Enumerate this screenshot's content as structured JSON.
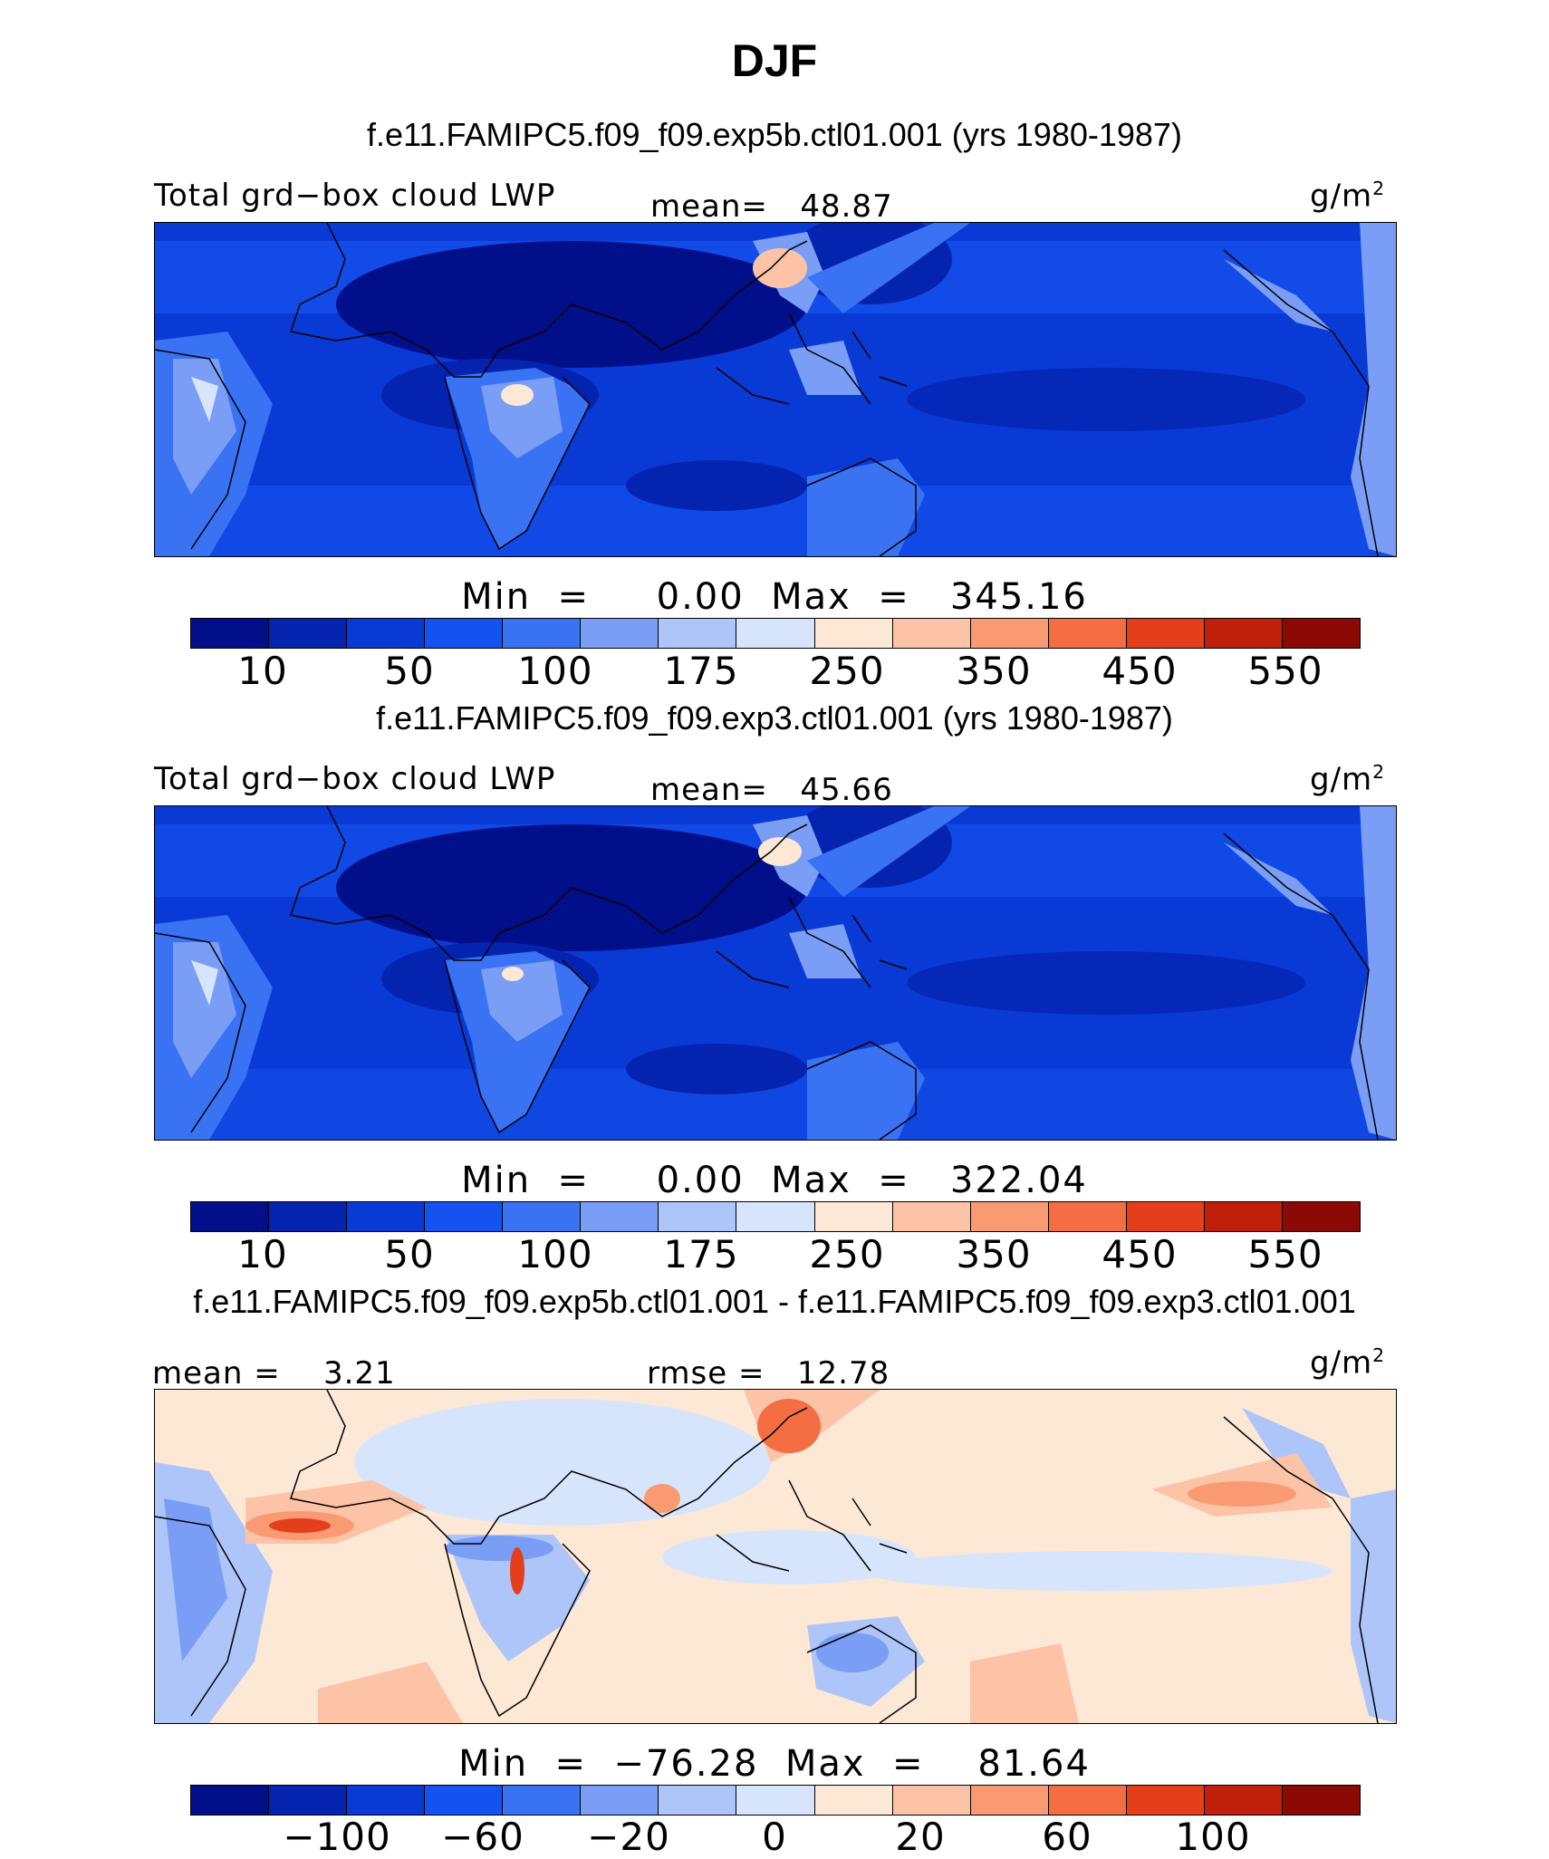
{
  "page_title": "DJF",
  "colors": {
    "seq": [
      "#01108a",
      "#0424b0",
      "#0a3ad6",
      "#1553f0",
      "#3a72f4",
      "#7a9df6",
      "#aec5f9",
      "#d7e5fc",
      "#fde8d6",
      "#fcc3a6",
      "#f99a73",
      "#f56d43",
      "#e53e1c",
      "#c01f0c",
      "#8c0a05"
    ],
    "diff": [
      "#01108a",
      "#0424b0",
      "#0a3ad6",
      "#1553f0",
      "#3a72f4",
      "#7a9df6",
      "#aec5f9",
      "#d7e5fc",
      "#fde8d6",
      "#fcc3a6",
      "#f99a73",
      "#f56d43",
      "#e53e1c",
      "#c01f0c",
      "#8c0a05"
    ]
  },
  "panels": [
    {
      "case_title": "f.e11.FAMIPC5.f09_f09.exp5b.ctl01.001 (yrs 1980-1987)",
      "variable_label": "Total grd−box cloud LWP",
      "mean_label": "mean=",
      "mean_value": "48.87",
      "units_base": "g/m",
      "units_exp": "2",
      "min_label": "Min",
      "min_value": "0.00",
      "max_label": "Max",
      "max_value": "345.16",
      "colorbar_ticks": [
        "10",
        "50",
        "100",
        "175",
        "250",
        "350",
        "450",
        "550"
      ]
    },
    {
      "case_title": "f.e11.FAMIPC5.f09_f09.exp3.ctl01.001 (yrs 1980-1987)",
      "variable_label": "Total grd−box cloud LWP",
      "mean_label": "mean=",
      "mean_value": "45.66",
      "units_base": "g/m",
      "units_exp": "2",
      "min_label": "Min",
      "min_value": "0.00",
      "max_label": "Max",
      "max_value": "322.04",
      "colorbar_ticks": [
        "10",
        "50",
        "100",
        "175",
        "250",
        "350",
        "450",
        "550"
      ]
    },
    {
      "case_title": "f.e11.FAMIPC5.f09_f09.exp5b.ctl01.001 - f.e11.FAMIPC5.f09_f09.exp3.ctl01.001",
      "mean_label": "mean =",
      "mean_value": "3.21",
      "rmse_label": "rmse =",
      "rmse_value": "12.78",
      "units_base": "g/m",
      "units_exp": "2",
      "min_label": "Min",
      "min_value": "−76.28",
      "max_label": "Max",
      "max_value": "81.64",
      "colorbar_ticks": [
        "−100",
        "−60",
        "−20",
        "0",
        "20",
        "60",
        "100"
      ]
    }
  ]
}
